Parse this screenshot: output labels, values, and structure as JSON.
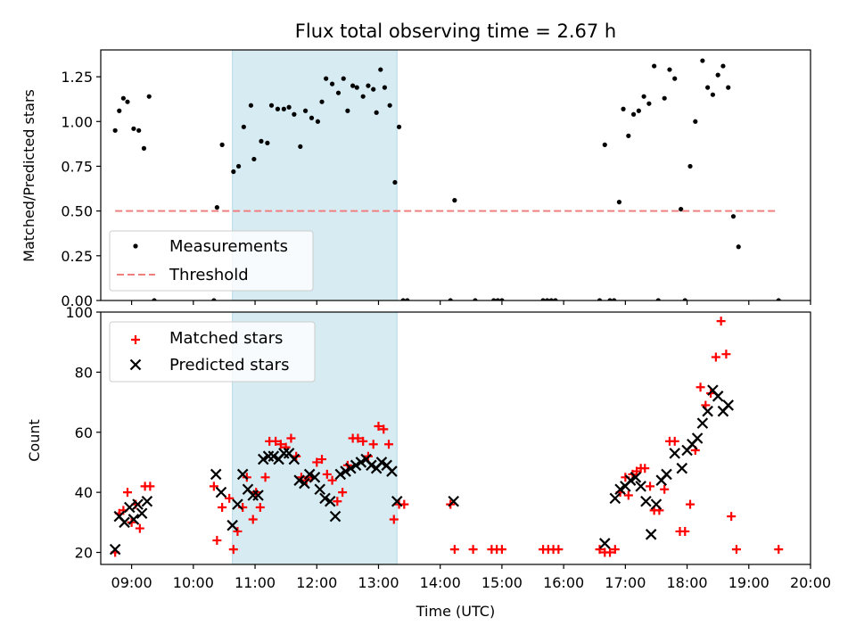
{
  "chart_data": [
    {
      "type": "scatter",
      "title": "Flux total observing time = 2.67 h",
      "ylabel": "Matched/Predicted stars",
      "xlim": [
        "08:30",
        "20:00"
      ],
      "ylim": [
        0,
        1.4
      ],
      "ytick_labels": [
        "0.00",
        "0.25",
        "0.50",
        "0.75",
        "1.00",
        "1.25"
      ],
      "yticks": [
        0,
        0.25,
        0.5,
        0.75,
        1.0,
        1.25
      ],
      "highlight_span": {
        "start": "10:38",
        "end": "13:18",
        "color": "#add8e6"
      },
      "legend": {
        "location": "lower-left",
        "entries": [
          "Measurements",
          "Threshold"
        ]
      },
      "series": [
        {
          "name": "Measurements",
          "style": "point",
          "color": "#000000",
          "points": [
            [
              "08:44",
              0.95
            ],
            [
              "08:48",
              1.06
            ],
            [
              "08:52",
              1.13
            ],
            [
              "08:56",
              1.11
            ],
            [
              "09:02",
              0.96
            ],
            [
              "09:07",
              0.95
            ],
            [
              "09:12",
              0.85
            ],
            [
              "09:17",
              1.14
            ],
            [
              "09:22",
              0.0
            ],
            [
              "10:20",
              0.0
            ],
            [
              "10:23",
              0.52
            ],
            [
              "10:28",
              0.87
            ],
            [
              "10:39",
              0.72
            ],
            [
              "10:44",
              0.75
            ],
            [
              "10:49",
              0.97
            ],
            [
              "10:56",
              1.09
            ],
            [
              "10:59",
              0.79
            ],
            [
              "11:06",
              0.89
            ],
            [
              "11:12",
              0.88
            ],
            [
              "11:16",
              1.09
            ],
            [
              "11:22",
              1.07
            ],
            [
              "11:28",
              1.07
            ],
            [
              "11:33",
              1.08
            ],
            [
              "11:38",
              1.04
            ],
            [
              "11:44",
              0.86
            ],
            [
              "11:49",
              1.06
            ],
            [
              "11:55",
              1.02
            ],
            [
              "12:01",
              1.0
            ],
            [
              "12:05",
              1.11
            ],
            [
              "12:09",
              1.24
            ],
            [
              "12:15",
              1.21
            ],
            [
              "12:21",
              1.16
            ],
            [
              "12:26",
              1.24
            ],
            [
              "12:30",
              1.06
            ],
            [
              "12:35",
              1.2
            ],
            [
              "12:39",
              1.19
            ],
            [
              "12:45",
              1.14
            ],
            [
              "12:50",
              1.2
            ],
            [
              "12:55",
              1.18
            ],
            [
              "12:58",
              1.05
            ],
            [
              "13:02",
              1.29
            ],
            [
              "13:06",
              1.19
            ],
            [
              "13:11",
              1.09
            ],
            [
              "13:16",
              0.66
            ],
            [
              "13:20",
              0.97
            ],
            [
              "13:24",
              0.0
            ],
            [
              "13:28",
              0.0
            ],
            [
              "14:10",
              0.0
            ],
            [
              "14:14",
              0.56
            ],
            [
              "14:34",
              0.0
            ],
            [
              "14:52",
              0.0
            ],
            [
              "14:56",
              0.0
            ],
            [
              "15:00",
              0.0
            ],
            [
              "15:40",
              0.0
            ],
            [
              "15:44",
              0.0
            ],
            [
              "15:48",
              0.0
            ],
            [
              "15:52",
              0.0
            ],
            [
              "16:35",
              0.0
            ],
            [
              "16:40",
              0.87
            ],
            [
              "16:45",
              0.0
            ],
            [
              "16:49",
              0.0
            ],
            [
              "16:54",
              0.55
            ],
            [
              "16:58",
              1.07
            ],
            [
              "17:03",
              0.92
            ],
            [
              "17:08",
              1.04
            ],
            [
              "17:13",
              1.06
            ],
            [
              "17:18",
              1.14
            ],
            [
              "17:23",
              1.1
            ],
            [
              "17:28",
              1.31
            ],
            [
              "17:32",
              0.0
            ],
            [
              "17:38",
              1.13
            ],
            [
              "17:43",
              1.29
            ],
            [
              "17:48",
              1.24
            ],
            [
              "17:54",
              0.51
            ],
            [
              "17:58",
              0.0
            ],
            [
              "18:03",
              0.75
            ],
            [
              "18:08",
              1.0
            ],
            [
              "18:15",
              1.34
            ],
            [
              "18:20",
              1.19
            ],
            [
              "18:25",
              1.15
            ],
            [
              "18:30",
              1.26
            ],
            [
              "18:35",
              1.31
            ],
            [
              "18:40",
              1.19
            ],
            [
              "18:45",
              0.47
            ],
            [
              "18:50",
              0.3
            ],
            [
              "19:29",
              0.0
            ]
          ]
        },
        {
          "name": "Threshold",
          "style": "dashed-line",
          "color": "#f08080",
          "points": [
            [
              "08:44",
              0.5
            ],
            [
              "19:29",
              0.5
            ]
          ]
        }
      ]
    },
    {
      "type": "scatter",
      "xlabel": "Time (UTC)",
      "ylabel": "Count",
      "xlim": [
        "08:30",
        "20:00"
      ],
      "ylim": [
        16,
        100
      ],
      "xtick_labels": [
        "09:00",
        "10:00",
        "11:00",
        "12:00",
        "13:00",
        "14:00",
        "15:00",
        "16:00",
        "17:00",
        "18:00",
        "19:00",
        "20:00"
      ],
      "ytick_labels": [
        "20",
        "40",
        "60",
        "80",
        "100"
      ],
      "yticks": [
        20,
        40,
        60,
        80,
        100
      ],
      "highlight_span": {
        "start": "10:38",
        "end": "13:18",
        "color": "#add8e6"
      },
      "legend": {
        "location": "upper-left",
        "entries": [
          "Matched stars",
          "Predicted stars"
        ]
      },
      "series": [
        {
          "name": "Matched stars",
          "marker": "plus",
          "color": "#ff0000",
          "points": [
            [
              "08:44",
              20
            ],
            [
              "08:48",
              33
            ],
            [
              "08:52",
              34
            ],
            [
              "08:56",
              40
            ],
            [
              "09:00",
              30
            ],
            [
              "09:04",
              36
            ],
            [
              "09:08",
              28
            ],
            [
              "09:13",
              42
            ],
            [
              "09:18",
              42
            ],
            [
              "10:20",
              42
            ],
            [
              "10:23",
              24
            ],
            [
              "10:28",
              35
            ],
            [
              "10:35",
              38
            ],
            [
              "10:39",
              21
            ],
            [
              "10:43",
              27
            ],
            [
              "10:48",
              35
            ],
            [
              "10:52",
              45
            ],
            [
              "10:58",
              31
            ],
            [
              "11:01",
              40
            ],
            [
              "11:05",
              35
            ],
            [
              "11:10",
              45
            ],
            [
              "11:14",
              57
            ],
            [
              "11:20",
              57
            ],
            [
              "11:25",
              56
            ],
            [
              "11:30",
              55
            ],
            [
              "11:35",
              58
            ],
            [
              "11:40",
              52
            ],
            [
              "11:45",
              45
            ],
            [
              "11:50",
              44
            ],
            [
              "11:55",
              45
            ],
            [
              "12:00",
              50
            ],
            [
              "12:05",
              51
            ],
            [
              "12:10",
              46
            ],
            [
              "12:15",
              44
            ],
            [
              "12:20",
              37
            ],
            [
              "12:25",
              40
            ],
            [
              "12:30",
              49
            ],
            [
              "12:35",
              58
            ],
            [
              "12:40",
              58
            ],
            [
              "12:45",
              57
            ],
            [
              "12:50",
              52
            ],
            [
              "12:55",
              56
            ],
            [
              "13:00",
              62
            ],
            [
              "13:05",
              61
            ],
            [
              "13:10",
              56
            ],
            [
              "13:15",
              31
            ],
            [
              "13:20",
              36
            ],
            [
              "13:25",
              36
            ],
            [
              "14:10",
              36
            ],
            [
              "14:14",
              21
            ],
            [
              "14:32",
              21
            ],
            [
              "14:50",
              21
            ],
            [
              "14:55",
              21
            ],
            [
              "15:00",
              21
            ],
            [
              "15:40",
              21
            ],
            [
              "15:45",
              21
            ],
            [
              "15:50",
              21
            ],
            [
              "15:55",
              21
            ],
            [
              "16:35",
              21
            ],
            [
              "16:40",
              20
            ],
            [
              "16:45",
              20
            ],
            [
              "16:50",
              21
            ],
            [
              "16:55",
              40
            ],
            [
              "17:00",
              45
            ],
            [
              "17:03",
              39
            ],
            [
              "17:07",
              46
            ],
            [
              "17:11",
              47
            ],
            [
              "17:15",
              48
            ],
            [
              "17:19",
              48
            ],
            [
              "17:24",
              42
            ],
            [
              "17:28",
              34
            ],
            [
              "17:33",
              34
            ],
            [
              "17:38",
              41
            ],
            [
              "17:43",
              57
            ],
            [
              "17:48",
              57
            ],
            [
              "17:53",
              27
            ],
            [
              "17:58",
              27
            ],
            [
              "18:03",
              36
            ],
            [
              "18:08",
              54
            ],
            [
              "18:13",
              75
            ],
            [
              "18:18",
              69
            ],
            [
              "18:23",
              73
            ],
            [
              "18:28",
              85
            ],
            [
              "18:33",
              97
            ],
            [
              "18:38",
              86
            ],
            [
              "18:43",
              32
            ],
            [
              "18:48",
              21
            ],
            [
              "19:29",
              21
            ]
          ]
        },
        {
          "name": "Predicted stars",
          "marker": "x",
          "color": "#000000",
          "points": [
            [
              "08:44",
              21
            ],
            [
              "08:48",
              32
            ],
            [
              "08:53",
              30
            ],
            [
              "08:58",
              35
            ],
            [
              "09:02",
              31
            ],
            [
              "09:06",
              36
            ],
            [
              "09:10",
              33
            ],
            [
              "09:15",
              37
            ],
            [
              "10:22",
              46
            ],
            [
              "10:27",
              40
            ],
            [
              "10:38",
              29
            ],
            [
              "10:43",
              36
            ],
            [
              "10:48",
              46
            ],
            [
              "10:53",
              41
            ],
            [
              "10:58",
              39
            ],
            [
              "11:03",
              39
            ],
            [
              "11:08",
              51
            ],
            [
              "11:13",
              52
            ],
            [
              "11:18",
              52
            ],
            [
              "11:23",
              51
            ],
            [
              "11:28",
              53
            ],
            [
              "11:33",
              53
            ],
            [
              "11:38",
              51
            ],
            [
              "11:43",
              44
            ],
            [
              "11:48",
              43
            ],
            [
              "11:53",
              46
            ],
            [
              "11:58",
              45
            ],
            [
              "12:03",
              41
            ],
            [
              "12:08",
              38
            ],
            [
              "12:13",
              37
            ],
            [
              "12:18",
              32
            ],
            [
              "12:23",
              46
            ],
            [
              "12:28",
              47
            ],
            [
              "12:33",
              48
            ],
            [
              "12:38",
              49
            ],
            [
              "12:43",
              50
            ],
            [
              "12:48",
              51
            ],
            [
              "12:53",
              49
            ],
            [
              "12:58",
              48
            ],
            [
              "13:03",
              50
            ],
            [
              "13:08",
              49
            ],
            [
              "13:13",
              47
            ],
            [
              "13:18",
              37
            ],
            [
              "14:13",
              37
            ],
            [
              "16:40",
              23
            ],
            [
              "16:50",
              38
            ],
            [
              "16:55",
              41
            ],
            [
              "17:00",
              42
            ],
            [
              "17:05",
              44
            ],
            [
              "17:10",
              45
            ],
            [
              "17:15",
              42
            ],
            [
              "17:20",
              37
            ],
            [
              "17:25",
              26
            ],
            [
              "17:30",
              36
            ],
            [
              "17:35",
              44
            ],
            [
              "17:40",
              46
            ],
            [
              "17:48",
              53
            ],
            [
              "17:55",
              48
            ],
            [
              "18:00",
              54
            ],
            [
              "18:05",
              56
            ],
            [
              "18:10",
              58
            ],
            [
              "18:15",
              63
            ],
            [
              "18:20",
              67
            ],
            [
              "18:25",
              74
            ],
            [
              "18:30",
              72
            ],
            [
              "18:35",
              67
            ],
            [
              "18:40",
              69
            ]
          ]
        }
      ]
    }
  ]
}
